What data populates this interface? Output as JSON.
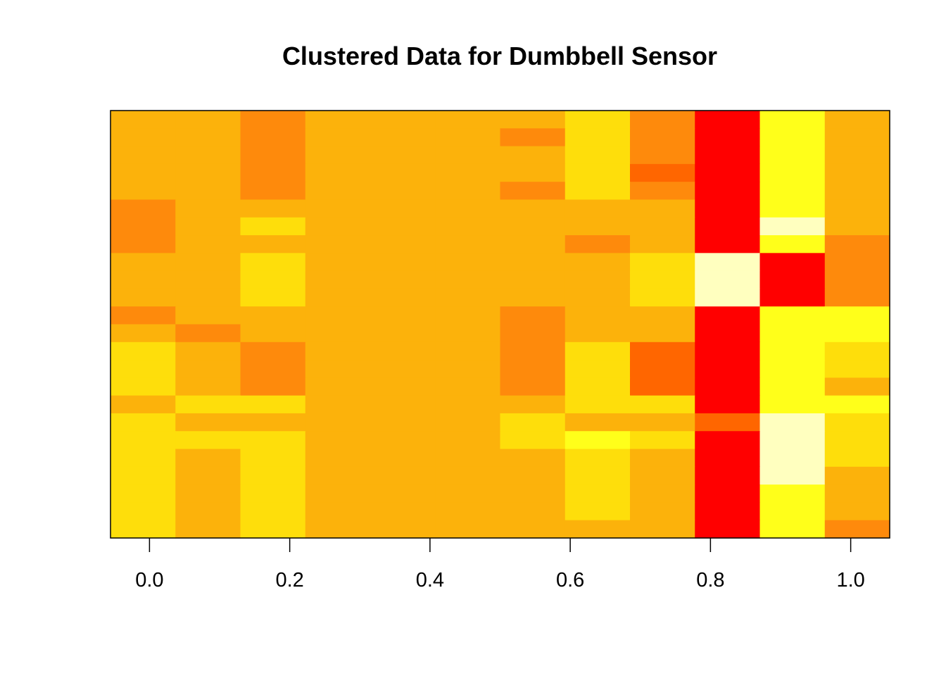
{
  "chart_data": {
    "type": "heatmap",
    "title": "Clustered Data for Dumbbell Sensor",
    "xlabel": "",
    "ylabel": "",
    "xlim": [
      -0.0556,
      1.0556
    ],
    "x_ticks": [
      "0.0",
      "0.2",
      "0.4",
      "0.6",
      "0.8",
      "1.0"
    ],
    "y_axis_shown": false,
    "grid": false,
    "colormap": "heat.colors (red to pale yellow)",
    "color_scale": [
      "#ff0000",
      "#ff6600",
      "#fe8a0c",
      "#fcb20b",
      "#fede0b",
      "#ffff1a",
      "#ffffbf"
    ],
    "n_columns": 12,
    "n_rows": 24,
    "row_blocks_top_to_bottom": [
      0,
      0,
      0,
      0,
      0,
      1,
      1,
      1,
      1,
      1,
      1,
      2,
      2,
      2,
      2,
      2,
      3,
      3,
      3,
      3,
      3,
      4,
      4,
      4
    ],
    "values_top_to_bottom": [
      [
        3,
        3,
        2,
        3,
        3,
        3,
        3,
        4,
        2,
        0,
        5,
        3
      ],
      [
        3,
        3,
        2,
        3,
        3,
        3,
        2,
        4,
        2,
        0,
        5,
        3
      ],
      [
        3,
        3,
        2,
        3,
        3,
        3,
        3,
        4,
        2,
        0,
        5,
        3
      ],
      [
        3,
        3,
        2,
        3,
        3,
        3,
        3,
        4,
        1,
        0,
        5,
        3
      ],
      [
        3,
        3,
        2,
        3,
        3,
        3,
        2,
        4,
        2,
        0,
        5,
        3
      ],
      [
        2,
        3,
        3,
        3,
        3,
        3,
        3,
        3,
        3,
        0,
        5,
        3
      ],
      [
        2,
        3,
        4,
        3,
        3,
        3,
        3,
        3,
        3,
        0,
        6,
        3
      ],
      [
        2,
        3,
        3,
        3,
        3,
        3,
        3,
        2,
        3,
        0,
        5,
        2
      ],
      [
        3,
        3,
        4,
        3,
        3,
        3,
        3,
        3,
        4,
        6,
        0,
        2
      ],
      [
        3,
        3,
        4,
        3,
        3,
        3,
        3,
        3,
        4,
        6,
        0,
        2
      ],
      [
        3,
        3,
        4,
        3,
        3,
        3,
        3,
        3,
        4,
        6,
        0,
        2
      ],
      [
        2,
        3,
        3,
        3,
        3,
        3,
        2,
        3,
        3,
        0,
        5,
        5
      ],
      [
        3,
        2,
        3,
        3,
        3,
        3,
        2,
        3,
        3,
        0,
        5,
        5
      ],
      [
        4,
        3,
        2,
        3,
        3,
        3,
        2,
        4,
        1,
        0,
        5,
        4
      ],
      [
        4,
        3,
        2,
        3,
        3,
        3,
        2,
        4,
        1,
        0,
        5,
        4
      ],
      [
        4,
        3,
        2,
        3,
        3,
        3,
        2,
        4,
        1,
        0,
        5,
        3
      ],
      [
        3,
        4,
        4,
        3,
        3,
        3,
        3,
        4,
        4,
        0,
        5,
        5
      ],
      [
        4,
        3,
        3,
        3,
        3,
        3,
        4,
        3,
        3,
        1,
        6,
        4
      ],
      [
        4,
        4,
        4,
        3,
        3,
        3,
        4,
        5,
        4,
        0,
        6,
        4
      ],
      [
        4,
        3,
        4,
        3,
        3,
        3,
        3,
        4,
        3,
        0,
        6,
        4
      ],
      [
        4,
        3,
        4,
        3,
        3,
        3,
        3,
        4,
        3,
        0,
        6,
        3
      ],
      [
        4,
        3,
        4,
        3,
        3,
        3,
        3,
        4,
        3,
        0,
        5,
        3
      ],
      [
        4,
        3,
        4,
        3,
        3,
        3,
        3,
        4,
        3,
        0,
        5,
        3
      ],
      [
        4,
        3,
        4,
        3,
        3,
        3,
        3,
        3,
        3,
        0,
        5,
        2
      ]
    ]
  }
}
